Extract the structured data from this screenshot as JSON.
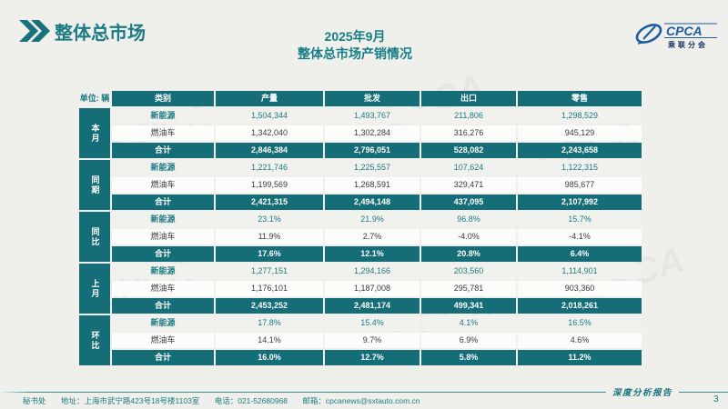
{
  "header": {
    "section_title": "整体总市场",
    "logo": {
      "brand": "CPCA",
      "brand_sub": "乘联分会"
    }
  },
  "title": {
    "line1": "2025年9月",
    "line2": "整体总市场产销情况"
  },
  "table": {
    "unit": "单位: 辆",
    "columns": [
      "类别",
      "产量",
      "批发",
      "出口",
      "零售"
    ],
    "sections": [
      {
        "label": "本月",
        "rows": [
          {
            "category": "新能源",
            "values": [
              "1,504,344",
              "1,493,767",
              "211,806",
              "1,298,529"
            ]
          },
          {
            "category": "燃油车",
            "values": [
              "1,342,040",
              "1,302,284",
              "316,276",
              "945,129"
            ]
          },
          {
            "category": "合计",
            "values": [
              "2,846,384",
              "2,796,051",
              "528,082",
              "2,243,658"
            ]
          }
        ]
      },
      {
        "label": "同期",
        "rows": [
          {
            "category": "新能源",
            "values": [
              "1,221,746",
              "1,225,557",
              "107,624",
              "1,122,315"
            ]
          },
          {
            "category": "燃油车",
            "values": [
              "1,199,569",
              "1,268,591",
              "329,471",
              "985,677"
            ]
          },
          {
            "category": "合计",
            "values": [
              "2,421,315",
              "2,494,148",
              "437,095",
              "2,107,992"
            ]
          }
        ]
      },
      {
        "label": "同比",
        "rows": [
          {
            "category": "新能源",
            "values": [
              "23.1%",
              "21.9%",
              "96.8%",
              "15.7%"
            ]
          },
          {
            "category": "燃油车",
            "values": [
              "11.9%",
              "2.7%",
              "-4.0%",
              "-4.1%"
            ]
          },
          {
            "category": "合计",
            "values": [
              "17.6%",
              "12.1%",
              "20.8%",
              "6.4%"
            ]
          }
        ]
      },
      {
        "label": "上月",
        "rows": [
          {
            "category": "新能源",
            "values": [
              "1,277,151",
              "1,294,166",
              "203,560",
              "1,114,901"
            ]
          },
          {
            "category": "燃油车",
            "values": [
              "1,176,101",
              "1,187,008",
              "295,781",
              "903,360"
            ]
          },
          {
            "category": "合计",
            "values": [
              "2,453,252",
              "2,481,174",
              "499,341",
              "2,018,261"
            ]
          }
        ]
      },
      {
        "label": "环比",
        "rows": [
          {
            "category": "新能源",
            "values": [
              "17.8%",
              "15.4%",
              "4.1%",
              "16.5%"
            ]
          },
          {
            "category": "燃油车",
            "values": [
              "14.1%",
              "9.7%",
              "6.9%",
              "4.6%"
            ]
          },
          {
            "category": "合计",
            "values": [
              "16.0%",
              "12.7%",
              "5.8%",
              "11.2%"
            ]
          }
        ]
      }
    ]
  },
  "footer": {
    "org": "秘书处",
    "address": "地址：上海市武宁路423号18号楼1103室",
    "phone": "电话：021-52680968",
    "email": "邮箱：cpcanews@sxtauto.com.cn",
    "report_label": "深度分析报告",
    "page_number": "3"
  },
  "watermark": "CPCA",
  "colors": {
    "teal_fill": "#156e77",
    "teal_text": "#1d7b82",
    "title_teal": "#157e86",
    "logo_blue": "#1e5aa0",
    "row_light": "#f1f1ee",
    "row_white": "#fcfcfb",
    "page_bg": "#efefec"
  }
}
